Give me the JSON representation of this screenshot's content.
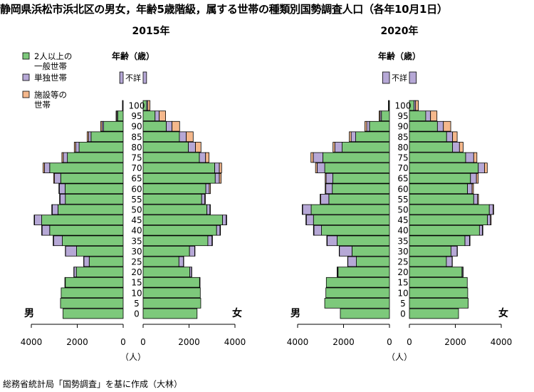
{
  "title": "静岡県浜松市浜北区の男女，年齢5歳階級，属する世帯の種類別国勢調査人口（各年10月1日）",
  "source_note": "総務省統計局「国勢調査」を基に作成（大林）",
  "colors": {
    "general": "#7dc97b",
    "single": "#b6a8d6",
    "facility": "#f5b88c",
    "frame": "#000000"
  },
  "chart_data": [
    {
      "type": "bar",
      "title": "2015年",
      "legend_position": "top-left",
      "legend": [
        {
          "key": "general",
          "label": "2人以上の\n一般世帯"
        },
        {
          "key": "single",
          "label": "単独世帯"
        },
        {
          "key": "facility",
          "label": "施設等の\n世帯"
        }
      ],
      "age_axis_label": "年齢（歳）",
      "unknown_label": "不詳",
      "male_label": "男",
      "female_label": "女",
      "x_unit": "（人）",
      "x_ticks_left": [
        "4000",
        "2000",
        "0"
      ],
      "x_ticks_right": [
        "0",
        "2000",
        "4000"
      ],
      "xlim": [
        0,
        4000
      ],
      "age_ticks": [
        "0",
        "5",
        "10",
        "15",
        "20",
        "25",
        "30",
        "35",
        "40",
        "45",
        "50",
        "55",
        "60",
        "65",
        "70",
        "75",
        "80",
        "85",
        "90",
        "95",
        "100"
      ],
      "categories": [
        "0",
        "5",
        "10",
        "15",
        "20",
        "25",
        "30",
        "35",
        "40",
        "45",
        "50",
        "55",
        "60",
        "65",
        "70",
        "75",
        "80",
        "85",
        "90",
        "95",
        "100"
      ],
      "male": {
        "general": [
          2620,
          2730,
          2700,
          2520,
          2040,
          1480,
          2030,
          2650,
          3200,
          3550,
          2840,
          2520,
          2530,
          2720,
          3200,
          2430,
          1920,
          1400,
          850,
          240,
          20
        ],
        "single": [
          0,
          0,
          0,
          20,
          100,
          230,
          480,
          380,
          330,
          310,
          250,
          230,
          250,
          270,
          230,
          180,
          150,
          110,
          70,
          40,
          5
        ],
        "facility": [
          0,
          0,
          0,
          0,
          10,
          10,
          10,
          20,
          20,
          20,
          20,
          20,
          20,
          40,
          60,
          60,
          60,
          60,
          60,
          30,
          5
        ]
      },
      "female": {
        "general": [
          2350,
          2510,
          2490,
          2460,
          2030,
          1560,
          2020,
          2820,
          3200,
          3460,
          2780,
          2550,
          2730,
          3140,
          3120,
          2450,
          1970,
          1580,
          1010,
          520,
          150
        ],
        "single": [
          0,
          0,
          0,
          20,
          80,
          200,
          230,
          180,
          150,
          160,
          130,
          130,
          150,
          180,
          200,
          270,
          310,
          300,
          250,
          180,
          50
        ],
        "facility": [
          0,
          0,
          0,
          0,
          10,
          10,
          10,
          20,
          20,
          20,
          20,
          30,
          50,
          80,
          100,
          150,
          240,
          300,
          330,
          280,
          100
        ]
      },
      "unknown": {
        "male": 150,
        "female": 150
      }
    },
    {
      "type": "bar",
      "title": "2020年",
      "age_axis_label": "年齢（歳）",
      "unknown_label": "不詳",
      "male_label": "男",
      "female_label": "女",
      "x_unit": "（人）",
      "x_ticks_left": [
        "4000",
        "2000",
        "0"
      ],
      "x_ticks_right": [
        "0",
        "2000",
        "4000"
      ],
      "xlim": [
        0,
        4000
      ],
      "age_ticks": [
        "0",
        "5",
        "10",
        "15",
        "20",
        "25",
        "30",
        "35",
        "40",
        "45",
        "50",
        "55",
        "60",
        "65",
        "70",
        "75",
        "80",
        "85",
        "90",
        "95",
        "100"
      ],
      "categories": [
        "0",
        "5",
        "10",
        "15",
        "20",
        "25",
        "30",
        "35",
        "40",
        "45",
        "50",
        "55",
        "60",
        "65",
        "70",
        "75",
        "80",
        "85",
        "90",
        "95",
        "100"
      ],
      "male": {
        "general": [
          2140,
          2820,
          2770,
          2750,
          2240,
          1440,
          1630,
          2280,
          2960,
          3310,
          3410,
          2640,
          2490,
          2470,
          2820,
          2900,
          2060,
          1470,
          870,
          350,
          30
        ],
        "single": [
          0,
          0,
          0,
          0,
          30,
          370,
          550,
          430,
          330,
          310,
          370,
          350,
          280,
          290,
          330,
          420,
          320,
          200,
          120,
          60,
          10
        ],
        "facility": [
          0,
          0,
          0,
          0,
          10,
          10,
          10,
          20,
          20,
          20,
          20,
          30,
          30,
          40,
          70,
          100,
          80,
          80,
          80,
          40,
          5
        ]
      },
      "female": {
        "general": [
          2140,
          2560,
          2540,
          2520,
          2290,
          1610,
          1810,
          2420,
          3050,
          3400,
          3480,
          2800,
          2530,
          2660,
          3000,
          2450,
          1880,
          1620,
          1220,
          710,
          200
        ],
        "single": [
          0,
          0,
          0,
          0,
          40,
          250,
          270,
          200,
          130,
          130,
          160,
          170,
          200,
          260,
          270,
          350,
          300,
          260,
          260,
          210,
          70
        ],
        "facility": [
          0,
          0,
          0,
          0,
          10,
          10,
          10,
          20,
          20,
          30,
          30,
          40,
          60,
          80,
          120,
          140,
          160,
          200,
          320,
          280,
          120
        ]
      },
      "unknown": {
        "male": 300,
        "female": 300
      }
    }
  ]
}
